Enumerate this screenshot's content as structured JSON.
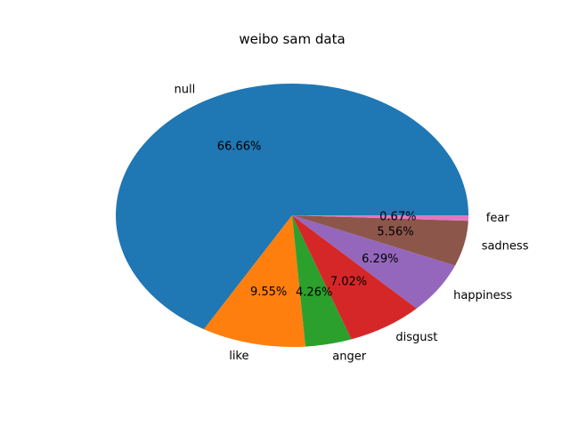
{
  "chart_data": {
    "type": "pie",
    "title": "weibo sam data",
    "slices": [
      {
        "label": "null",
        "value": 66.66,
        "pct_label": "66.66%",
        "color": "#1f77b4"
      },
      {
        "label": "like",
        "value": 9.55,
        "pct_label": "9.55%",
        "color": "#ff7f0e"
      },
      {
        "label": "anger",
        "value": 4.26,
        "pct_label": "4.26%",
        "color": "#2ca02c"
      },
      {
        "label": "disgust",
        "value": 7.02,
        "pct_label": "7.02%",
        "color": "#d62728"
      },
      {
        "label": "happiness",
        "value": 6.29,
        "pct_label": "6.29%",
        "color": "#9467bd"
      },
      {
        "label": "sadness",
        "value": 5.56,
        "pct_label": "5.56%",
        "color": "#8c564b"
      },
      {
        "label": "fear",
        "value": 0.67,
        "pct_label": "0.67%",
        "color": "#e377c2"
      }
    ],
    "start_angle_deg": 0,
    "direction": "counterclockwise"
  }
}
